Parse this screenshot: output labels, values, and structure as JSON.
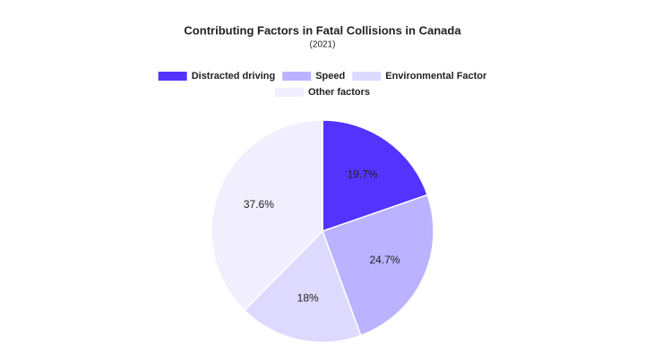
{
  "chart_data": {
    "type": "pie",
    "title": "Contributing Factors in Fatal Collisions in Canada",
    "subtitle": "(2021)",
    "categories": [
      "Distracted driving",
      "Speed",
      "Environmental Factor",
      "Other factors"
    ],
    "values": [
      19.7,
      24.7,
      18,
      37.6
    ],
    "value_labels": [
      "19.7%",
      "24.7%",
      "18%",
      "37.6%"
    ],
    "colors": [
      "#5533ff",
      "#bbb3ff",
      "#ddd9ff",
      "#f1eefe"
    ],
    "legend": "top"
  }
}
